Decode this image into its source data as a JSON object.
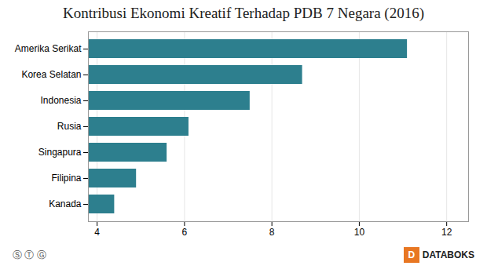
{
  "chart_data": {
    "type": "bar",
    "orientation": "horizontal",
    "title": "Kontribusi Ekonomi Kreatif Terhadap PDB 7 Negara (2016)",
    "categories": [
      "Kanada",
      "Filipina",
      "Singapura",
      "Rusia",
      "Indonesia",
      "Korea Selatan",
      "Amerika Serikat"
    ],
    "values": [
      4.4,
      4.9,
      5.6,
      6.1,
      7.5,
      8.7,
      11.1
    ],
    "color": "#2d7f8e",
    "xlim": [
      3.8,
      12.5
    ],
    "xticks": [
      4,
      6,
      8,
      10,
      12
    ],
    "grid": true,
    "annotations": [
      "Ⓢ Ⓣ Ⓖ",
      "D",
      "DATABOKS"
    ]
  }
}
